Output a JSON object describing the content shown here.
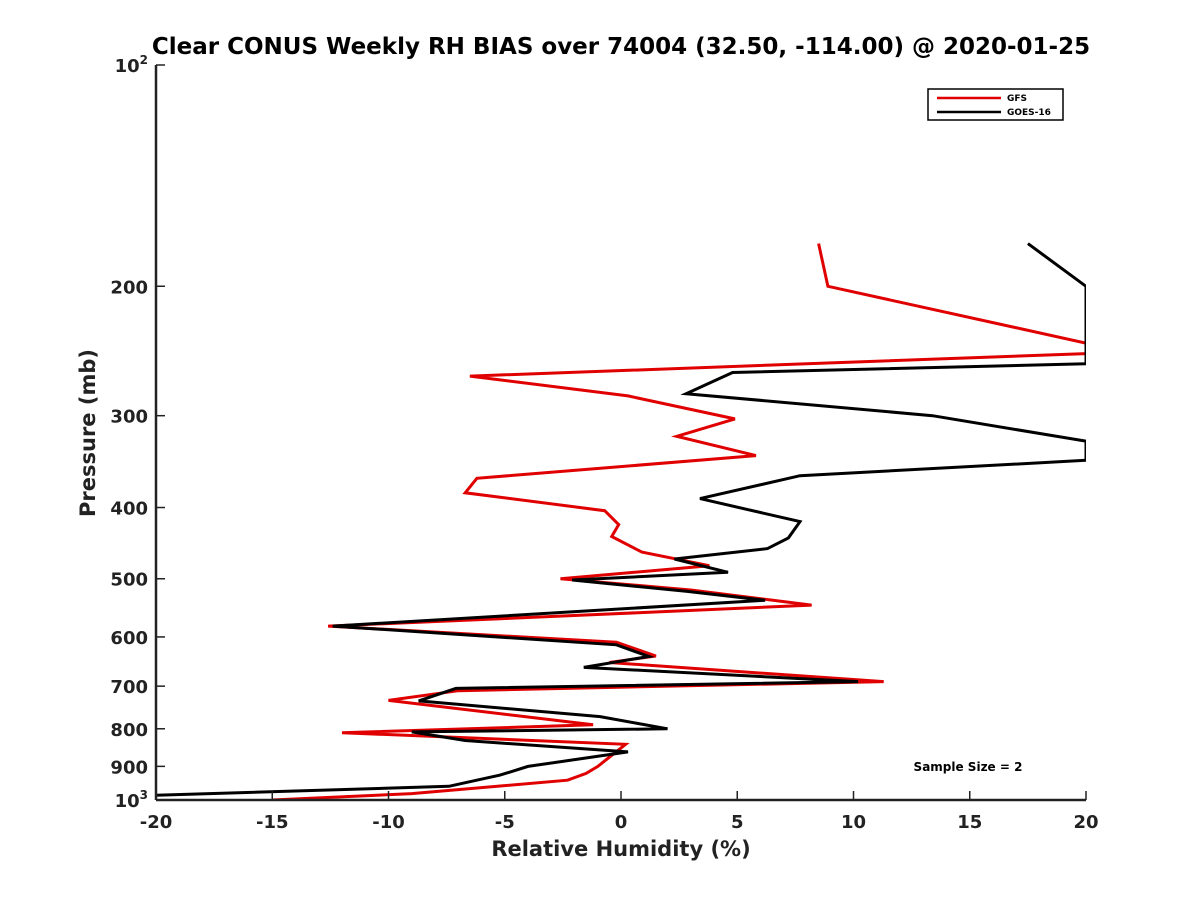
{
  "chart_data": {
    "type": "line",
    "title": "Clear CONUS Weekly RH BIAS over 74004 (32.50, -114.00) @ 2020-01-25",
    "xlabel": "Relative Humidity (%)",
    "ylabel": "Pressure (mb)",
    "xlim": [
      -20,
      20
    ],
    "ylim": [
      100,
      1000
    ],
    "y_scale": "log",
    "y_reversed": true,
    "x_ticks": [
      -20,
      -15,
      -10,
      -5,
      0,
      5,
      10,
      15,
      20
    ],
    "x_tick_labels": [
      "-20",
      "-15",
      "-10",
      "-5",
      "0",
      "5",
      "10",
      "15",
      "20"
    ],
    "y_ticks": [
      100,
      200,
      300,
      400,
      500,
      600,
      700,
      800,
      900,
      1000
    ],
    "y_tick_labels": [
      {
        "base": "10",
        "exp": "2"
      },
      {
        "base": "200"
      },
      {
        "base": "300"
      },
      {
        "base": "400"
      },
      {
        "base": "500"
      },
      {
        "base": "600"
      },
      {
        "base": "700"
      },
      {
        "base": "800"
      },
      {
        "base": "900"
      },
      {
        "base": "10",
        "exp": "3"
      }
    ],
    "legend_position": "top-right",
    "annotation": "Sample Size = 2",
    "series": [
      {
        "name": "GFS",
        "color": "#e00000",
        "points": [
          [
            8.5,
            175
          ],
          [
            8.9,
            200
          ],
          [
            20,
            239
          ],
          [
            20,
            247
          ],
          [
            -6.5,
            265
          ],
          [
            0.3,
            282
          ],
          [
            4.9,
            303
          ],
          [
            2.4,
            320
          ],
          [
            5.8,
            340
          ],
          [
            -6.2,
            365
          ],
          [
            -6.7,
            382
          ],
          [
            -0.7,
            404
          ],
          [
            -0.1,
            422
          ],
          [
            -0.4,
            438
          ],
          [
            0.9,
            460
          ],
          [
            3.8,
            480
          ],
          [
            -2.6,
            500
          ],
          [
            3.0,
            518
          ],
          [
            8.2,
            543
          ],
          [
            -1.4,
            560
          ],
          [
            -12.6,
            580
          ],
          [
            -0.2,
            610
          ],
          [
            1.5,
            637
          ],
          [
            -0.5,
            650
          ],
          [
            11.3,
            690
          ],
          [
            -7.0,
            710
          ],
          [
            -10.0,
            732
          ],
          [
            -1.2,
            790
          ],
          [
            -12.0,
            810
          ],
          [
            0.2,
            840
          ],
          [
            -1.0,
            900
          ],
          [
            -1.5,
            920
          ],
          [
            -2.3,
            940
          ],
          [
            -9.0,
            980
          ],
          [
            -15.0,
            1000
          ]
        ]
      },
      {
        "name": "GOES-16",
        "color": "#000000",
        "points": [
          [
            17.5,
            175
          ],
          [
            20,
            200
          ],
          [
            20,
            255
          ],
          [
            4.8,
            262
          ],
          [
            2.8,
            280
          ],
          [
            13.4,
            300
          ],
          [
            20,
            325
          ],
          [
            20,
            345
          ],
          [
            7.7,
            362
          ],
          [
            3.4,
            389
          ],
          [
            7.7,
            418
          ],
          [
            7.2,
            440
          ],
          [
            6.3,
            455
          ],
          [
            2.3,
            470
          ],
          [
            4.6,
            490
          ],
          [
            -2.1,
            502
          ],
          [
            2.8,
            520
          ],
          [
            6.2,
            535
          ],
          [
            -12.4,
            580
          ],
          [
            -0.2,
            615
          ],
          [
            1.2,
            638
          ],
          [
            -1.6,
            660
          ],
          [
            10.2,
            690
          ],
          [
            -7.1,
            705
          ],
          [
            -8.7,
            733
          ],
          [
            -0.9,
            770
          ],
          [
            2.0,
            800
          ],
          [
            -9.0,
            808
          ],
          [
            -6.7,
            830
          ],
          [
            0.3,
            860
          ],
          [
            -4.0,
            900
          ],
          [
            -5.2,
            925
          ],
          [
            -7.4,
            958
          ],
          [
            -20.0,
            985
          ]
        ]
      }
    ]
  }
}
